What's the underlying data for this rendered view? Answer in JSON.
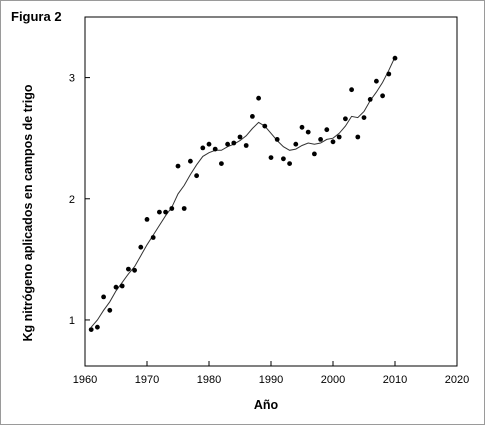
{
  "figure_label": "Figura 2",
  "chart_data": {
    "type": "scatter",
    "title": "",
    "xlabel": "Año",
    "ylabel": "Kg nitrógeno aplicados en campos de trigo",
    "xlim": [
      1960,
      2020
    ],
    "ylim": [
      0.62,
      3.5
    ],
    "xticks": [
      1960,
      1970,
      1980,
      1990,
      2000,
      2010,
      2020
    ],
    "yticks": [
      1,
      2,
      3
    ],
    "grid": false,
    "legend": "none",
    "series": [
      {
        "kind": "points",
        "x": [
          1961,
          1962,
          1963,
          1964,
          1965,
          1966,
          1967,
          1968,
          1969,
          1970,
          1971,
          1972,
          1973,
          1974,
          1975,
          1976,
          1977,
          1978,
          1979,
          1980,
          1981,
          1982,
          1983,
          1984,
          1985,
          1986,
          1987,
          1988,
          1989,
          1990,
          1991,
          1992,
          1993,
          1994,
          1995,
          1996,
          1997,
          1998,
          1999,
          2000,
          2001,
          2002,
          2003,
          2004,
          2005,
          2006,
          2007,
          2008,
          2009,
          2010
        ],
        "y": [
          0.92,
          0.94,
          1.19,
          1.08,
          1.27,
          1.28,
          1.42,
          1.41,
          1.6,
          1.83,
          1.68,
          1.89,
          1.89,
          1.92,
          2.27,
          1.92,
          2.31,
          2.19,
          2.42,
          2.45,
          2.41,
          2.29,
          2.45,
          2.46,
          2.51,
          2.44,
          2.68,
          2.83,
          2.6,
          2.34,
          2.49,
          2.33,
          2.29,
          2.45,
          2.59,
          2.55,
          2.37,
          2.49,
          2.57,
          2.47,
          2.51,
          2.66,
          2.9,
          2.51,
          2.67,
          2.82,
          2.97,
          2.85,
          3.03,
          3.16
        ]
      },
      {
        "kind": "smoothed-line",
        "x": [
          1961,
          1962,
          1963,
          1964,
          1965,
          1966,
          1967,
          1968,
          1969,
          1970,
          1971,
          1972,
          1973,
          1974,
          1975,
          1976,
          1977,
          1978,
          1979,
          1980,
          1981,
          1982,
          1983,
          1984,
          1985,
          1986,
          1987,
          1988,
          1989,
          1990,
          1991,
          1992,
          1993,
          1994,
          1995,
          1996,
          1997,
          1998,
          1999,
          2000,
          2001,
          2002,
          2003,
          2004,
          2005,
          2006,
          2007,
          2008,
          2009,
          2010
        ],
        "y": [
          0.94,
          1.0,
          1.08,
          1.15,
          1.24,
          1.31,
          1.38,
          1.44,
          1.53,
          1.62,
          1.7,
          1.78,
          1.86,
          1.93,
          2.04,
          2.11,
          2.2,
          2.28,
          2.35,
          2.38,
          2.4,
          2.4,
          2.43,
          2.45,
          2.48,
          2.52,
          2.58,
          2.63,
          2.6,
          2.54,
          2.48,
          2.43,
          2.4,
          2.41,
          2.44,
          2.46,
          2.45,
          2.46,
          2.49,
          2.5,
          2.54,
          2.6,
          2.68,
          2.67,
          2.72,
          2.81,
          2.88,
          2.96,
          3.06,
          3.17
        ]
      }
    ]
  }
}
